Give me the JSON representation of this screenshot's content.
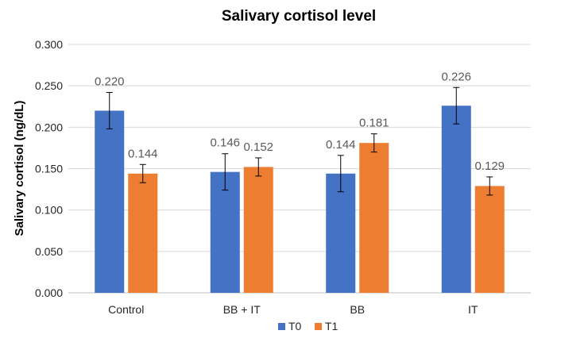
{
  "chart_data": {
    "type": "bar",
    "title": "Salivary cortisol level",
    "ylabel": "Salivary cortisol (ng/dL)",
    "xlabel": "",
    "categories": [
      "Control",
      "BB + IT",
      "BB",
      "IT"
    ],
    "ylim": [
      0,
      0.3
    ],
    "yticks": [
      "0.000",
      "0.050",
      "0.100",
      "0.150",
      "0.200",
      "0.250",
      "0.300"
    ],
    "grid": true,
    "legend_position": "bottom",
    "series": [
      {
        "name": "T0",
        "color": "#4472C4",
        "values": [
          0.22,
          0.146,
          0.144,
          0.226
        ],
        "labels": [
          "0.220",
          "0.146",
          "0.144",
          "0.226"
        ],
        "error": [
          0.022,
          0.022,
          0.022,
          0.022
        ]
      },
      {
        "name": "T1",
        "color": "#ED7D31",
        "values": [
          0.144,
          0.152,
          0.181,
          0.129
        ],
        "labels": [
          "0.144",
          "0.152",
          "0.181",
          "0.129"
        ],
        "error": [
          0.011,
          0.011,
          0.011,
          0.011
        ]
      }
    ]
  }
}
